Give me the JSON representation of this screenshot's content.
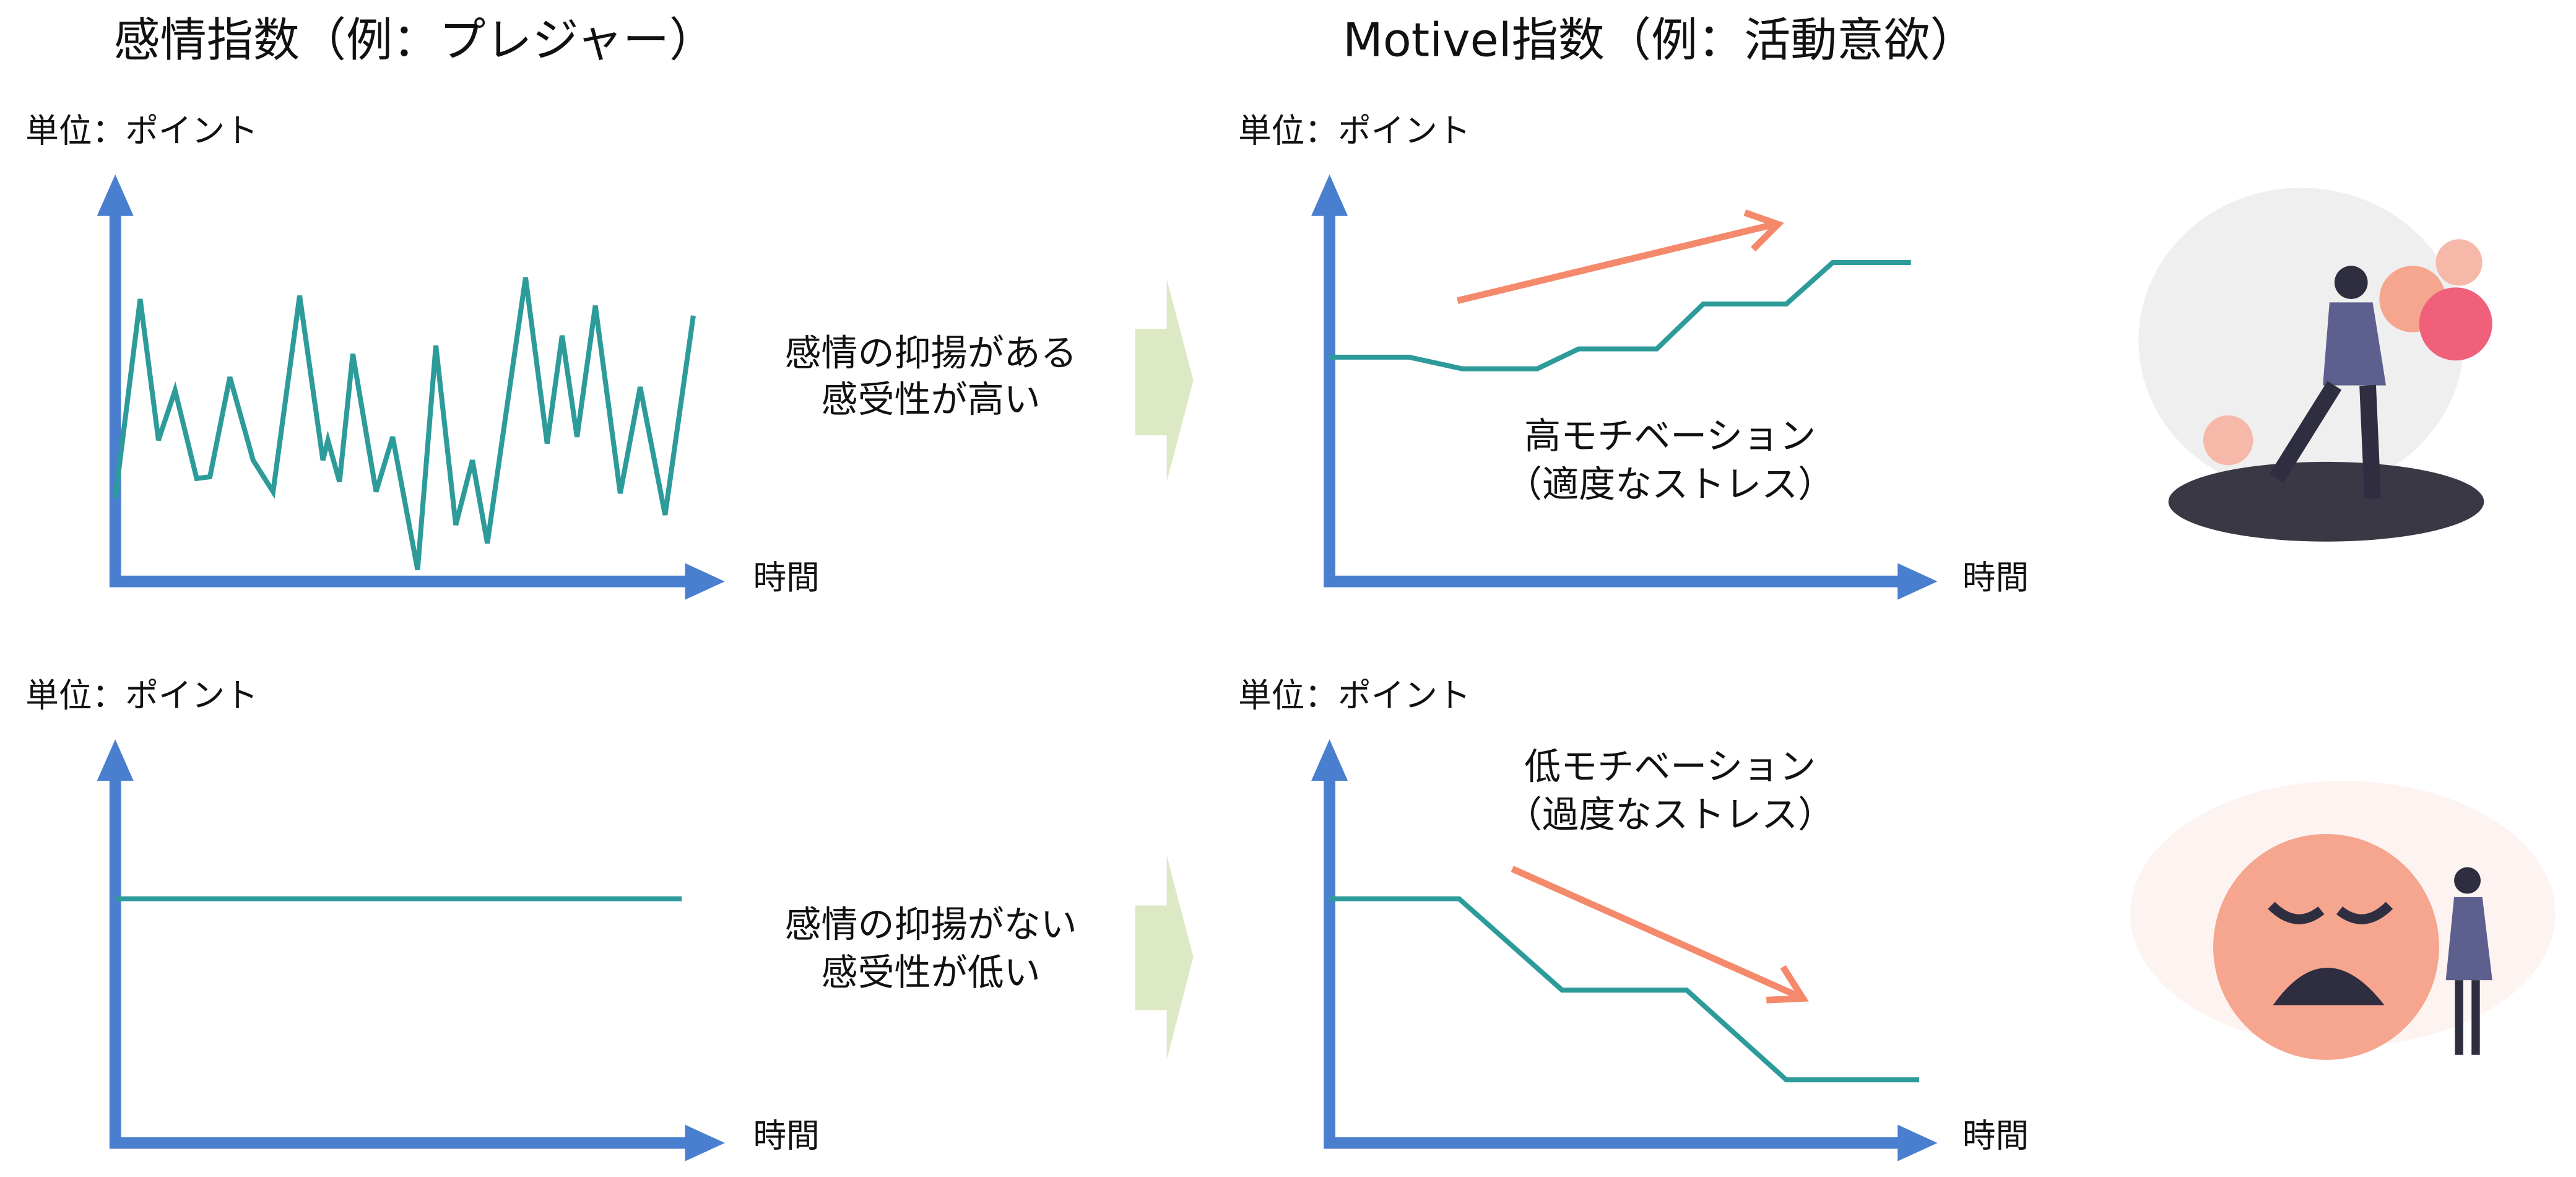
{
  "headers": {
    "emotion": "感情指数（例：プレジャー）",
    "motivation": "Motivel指数（例：活動意欲）"
  },
  "charts": [
    {
      "y_label": "単位：ポイント",
      "x_label": "時間"
    },
    {
      "y_label": "単位：ポイント",
      "x_label": "時間"
    },
    {
      "y_label": "単位：ポイント",
      "x_label": "時間"
    },
    {
      "y_label": "単位：ポイント",
      "x_label": "時間"
    }
  ],
  "transitions": [
    {
      "lines": [
        "感情の抑揚がある",
        "感受性が高い"
      ]
    },
    {
      "lines": [
        "感情の抑揚がない",
        "感受性が低い"
      ]
    }
  ],
  "annotations": [
    {
      "lines": [
        "高モチベーション",
        "（適度なストレス）"
      ]
    },
    {
      "lines": [
        "低モチベーション",
        "（過度なストレス）"
      ]
    }
  ]
}
